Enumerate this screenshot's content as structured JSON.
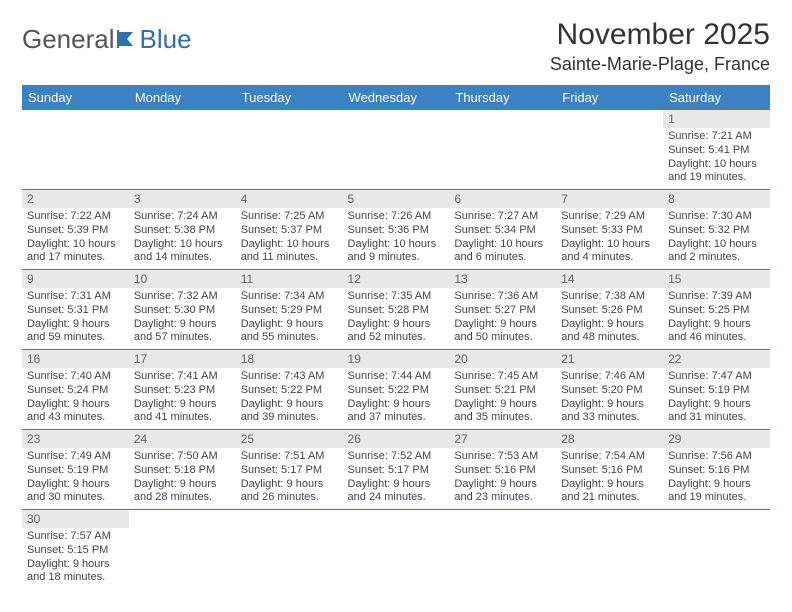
{
  "logo": {
    "part1": "General",
    "part2": "Blue"
  },
  "title": "November 2025",
  "location": "Sainte-Marie-Plage, France",
  "colors": {
    "header_bg": "#3b82c4",
    "header_text": "#ffffff",
    "daynum_bg": "#e8e8e8",
    "border": "#3b82c4",
    "logo_blue": "#2f6faa"
  },
  "day_headers": [
    "Sunday",
    "Monday",
    "Tuesday",
    "Wednesday",
    "Thursday",
    "Friday",
    "Saturday"
  ],
  "weeks": [
    [
      null,
      null,
      null,
      null,
      null,
      null,
      {
        "n": "1",
        "sr": "Sunrise: 7:21 AM",
        "ss": "Sunset: 5:41 PM",
        "dl": "Daylight: 10 hours and 19 minutes."
      }
    ],
    [
      {
        "n": "2",
        "sr": "Sunrise: 7:22 AM",
        "ss": "Sunset: 5:39 PM",
        "dl": "Daylight: 10 hours and 17 minutes."
      },
      {
        "n": "3",
        "sr": "Sunrise: 7:24 AM",
        "ss": "Sunset: 5:38 PM",
        "dl": "Daylight: 10 hours and 14 minutes."
      },
      {
        "n": "4",
        "sr": "Sunrise: 7:25 AM",
        "ss": "Sunset: 5:37 PM",
        "dl": "Daylight: 10 hours and 11 minutes."
      },
      {
        "n": "5",
        "sr": "Sunrise: 7:26 AM",
        "ss": "Sunset: 5:36 PM",
        "dl": "Daylight: 10 hours and 9 minutes."
      },
      {
        "n": "6",
        "sr": "Sunrise: 7:27 AM",
        "ss": "Sunset: 5:34 PM",
        "dl": "Daylight: 10 hours and 6 minutes."
      },
      {
        "n": "7",
        "sr": "Sunrise: 7:29 AM",
        "ss": "Sunset: 5:33 PM",
        "dl": "Daylight: 10 hours and 4 minutes."
      },
      {
        "n": "8",
        "sr": "Sunrise: 7:30 AM",
        "ss": "Sunset: 5:32 PM",
        "dl": "Daylight: 10 hours and 2 minutes."
      }
    ],
    [
      {
        "n": "9",
        "sr": "Sunrise: 7:31 AM",
        "ss": "Sunset: 5:31 PM",
        "dl": "Daylight: 9 hours and 59 minutes."
      },
      {
        "n": "10",
        "sr": "Sunrise: 7:32 AM",
        "ss": "Sunset: 5:30 PM",
        "dl": "Daylight: 9 hours and 57 minutes."
      },
      {
        "n": "11",
        "sr": "Sunrise: 7:34 AM",
        "ss": "Sunset: 5:29 PM",
        "dl": "Daylight: 9 hours and 55 minutes."
      },
      {
        "n": "12",
        "sr": "Sunrise: 7:35 AM",
        "ss": "Sunset: 5:28 PM",
        "dl": "Daylight: 9 hours and 52 minutes."
      },
      {
        "n": "13",
        "sr": "Sunrise: 7:36 AM",
        "ss": "Sunset: 5:27 PM",
        "dl": "Daylight: 9 hours and 50 minutes."
      },
      {
        "n": "14",
        "sr": "Sunrise: 7:38 AM",
        "ss": "Sunset: 5:26 PM",
        "dl": "Daylight: 9 hours and 48 minutes."
      },
      {
        "n": "15",
        "sr": "Sunrise: 7:39 AM",
        "ss": "Sunset: 5:25 PM",
        "dl": "Daylight: 9 hours and 46 minutes."
      }
    ],
    [
      {
        "n": "16",
        "sr": "Sunrise: 7:40 AM",
        "ss": "Sunset: 5:24 PM",
        "dl": "Daylight: 9 hours and 43 minutes."
      },
      {
        "n": "17",
        "sr": "Sunrise: 7:41 AM",
        "ss": "Sunset: 5:23 PM",
        "dl": "Daylight: 9 hours and 41 minutes."
      },
      {
        "n": "18",
        "sr": "Sunrise: 7:43 AM",
        "ss": "Sunset: 5:22 PM",
        "dl": "Daylight: 9 hours and 39 minutes."
      },
      {
        "n": "19",
        "sr": "Sunrise: 7:44 AM",
        "ss": "Sunset: 5:22 PM",
        "dl": "Daylight: 9 hours and 37 minutes."
      },
      {
        "n": "20",
        "sr": "Sunrise: 7:45 AM",
        "ss": "Sunset: 5:21 PM",
        "dl": "Daylight: 9 hours and 35 minutes."
      },
      {
        "n": "21",
        "sr": "Sunrise: 7:46 AM",
        "ss": "Sunset: 5:20 PM",
        "dl": "Daylight: 9 hours and 33 minutes."
      },
      {
        "n": "22",
        "sr": "Sunrise: 7:47 AM",
        "ss": "Sunset: 5:19 PM",
        "dl": "Daylight: 9 hours and 31 minutes."
      }
    ],
    [
      {
        "n": "23",
        "sr": "Sunrise: 7:49 AM",
        "ss": "Sunset: 5:19 PM",
        "dl": "Daylight: 9 hours and 30 minutes."
      },
      {
        "n": "24",
        "sr": "Sunrise: 7:50 AM",
        "ss": "Sunset: 5:18 PM",
        "dl": "Daylight: 9 hours and 28 minutes."
      },
      {
        "n": "25",
        "sr": "Sunrise: 7:51 AM",
        "ss": "Sunset: 5:17 PM",
        "dl": "Daylight: 9 hours and 26 minutes."
      },
      {
        "n": "26",
        "sr": "Sunrise: 7:52 AM",
        "ss": "Sunset: 5:17 PM",
        "dl": "Daylight: 9 hours and 24 minutes."
      },
      {
        "n": "27",
        "sr": "Sunrise: 7:53 AM",
        "ss": "Sunset: 5:16 PM",
        "dl": "Daylight: 9 hours and 23 minutes."
      },
      {
        "n": "28",
        "sr": "Sunrise: 7:54 AM",
        "ss": "Sunset: 5:16 PM",
        "dl": "Daylight: 9 hours and 21 minutes."
      },
      {
        "n": "29",
        "sr": "Sunrise: 7:56 AM",
        "ss": "Sunset: 5:16 PM",
        "dl": "Daylight: 9 hours and 19 minutes."
      }
    ],
    [
      {
        "n": "30",
        "sr": "Sunrise: 7:57 AM",
        "ss": "Sunset: 5:15 PM",
        "dl": "Daylight: 9 hours and 18 minutes."
      },
      null,
      null,
      null,
      null,
      null,
      null
    ]
  ]
}
